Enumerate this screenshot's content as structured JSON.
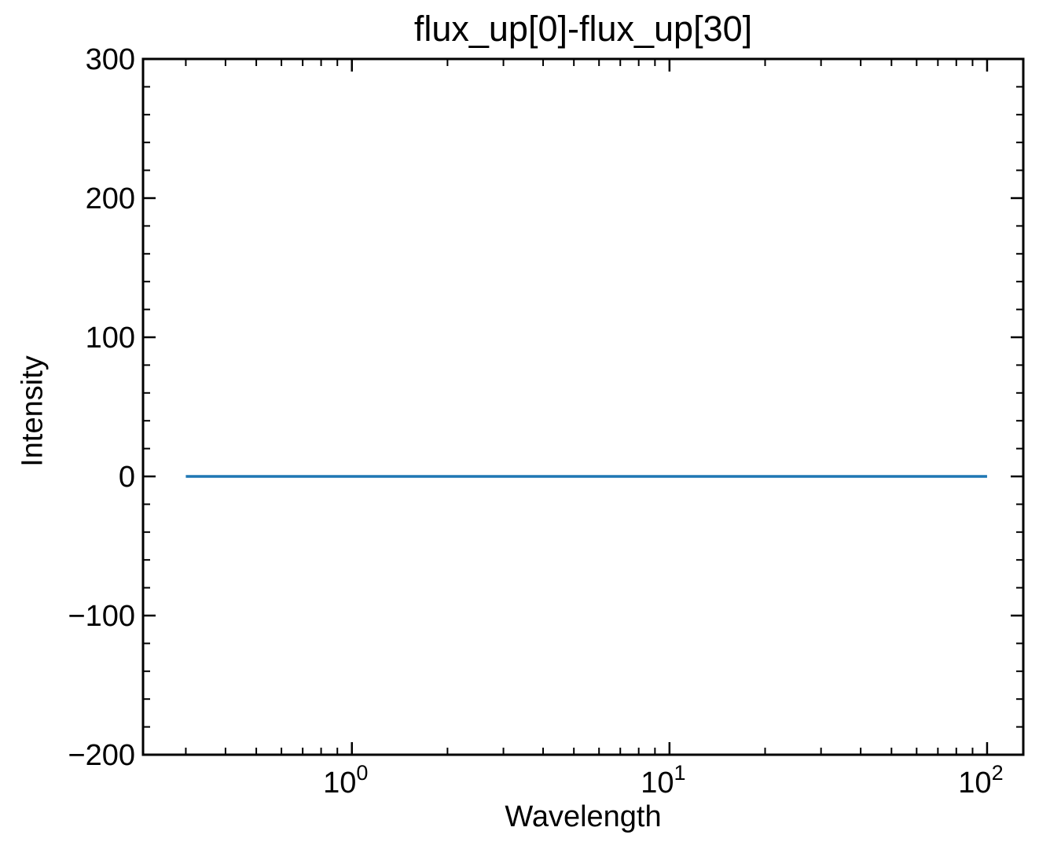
{
  "chart_data": {
    "type": "line",
    "title": "flux_up[0]-flux_up[30]",
    "xlabel": "Wavelength",
    "ylabel": "Intensity",
    "xscale": "log",
    "xlim": [
      0.22,
      130
    ],
    "ylim": [
      -200,
      300
    ],
    "x_ticks": [
      {
        "value": 1,
        "base": "10",
        "exp": "0"
      },
      {
        "value": 10,
        "base": "10",
        "exp": "1"
      },
      {
        "value": 100,
        "base": "10",
        "exp": "2"
      }
    ],
    "y_ticks": [
      {
        "value": -200,
        "label": "−200"
      },
      {
        "value": -100,
        "label": "−100"
      },
      {
        "value": 0,
        "label": "0"
      },
      {
        "value": 100,
        "label": "100"
      },
      {
        "value": 200,
        "label": "200"
      },
      {
        "value": 300,
        "label": "300"
      }
    ],
    "grid": false,
    "legend": "none",
    "series": [
      {
        "color": "#1f77b4",
        "x": [
          0.3,
          100
        ],
        "y": [
          0,
          0
        ]
      }
    ]
  }
}
